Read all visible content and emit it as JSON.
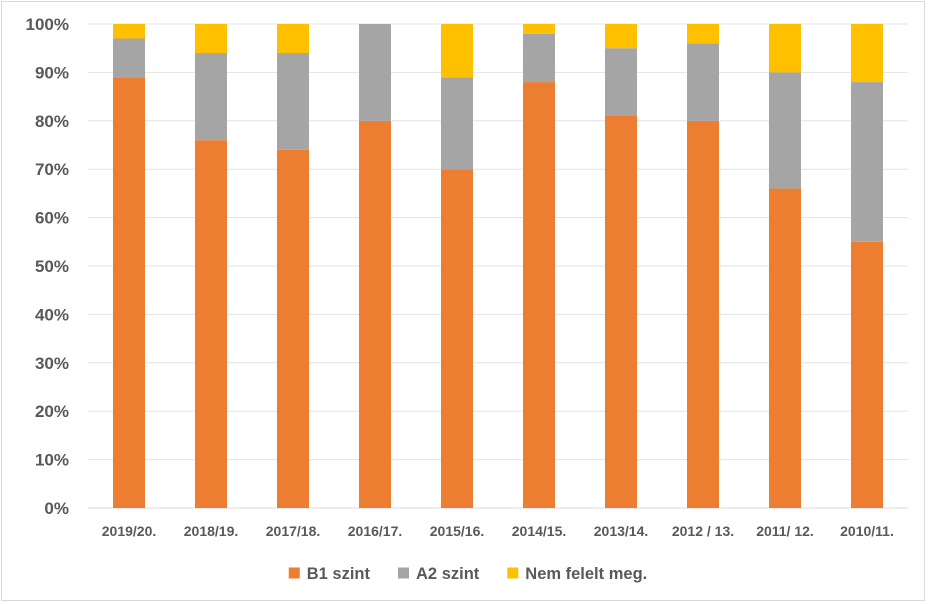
{
  "chart_data": {
    "type": "bar",
    "stacked": true,
    "categories": [
      "2019/20.",
      "2018/19.",
      "2017/18.",
      "2016/17.",
      "2015/16.",
      "2014/15.",
      "2013/14.",
      "2012 / 13.",
      "2011/ 12.",
      "2010/11."
    ],
    "series": [
      {
        "name": "B1 szint",
        "color": "#ED7D31",
        "values": [
          89,
          76,
          74,
          80,
          70,
          88,
          81,
          80,
          66,
          55
        ]
      },
      {
        "name": "A2 szint",
        "color": "#A5A5A5",
        "values": [
          8,
          18,
          20,
          20,
          19,
          10,
          14,
          16,
          24,
          33
        ]
      },
      {
        "name": "Nem felelt meg.",
        "color": "#FFC000",
        "values": [
          3,
          6,
          6,
          0,
          11,
          2,
          5,
          4,
          10,
          12
        ]
      }
    ],
    "ylim": [
      0,
      100
    ],
    "yticks": [
      "0%",
      "10%",
      "20%",
      "30%",
      "40%",
      "50%",
      "60%",
      "70%",
      "80%",
      "90%",
      "100%"
    ],
    "grid": true,
    "legend_position": "bottom",
    "title": "",
    "xlabel": "",
    "ylabel": ""
  }
}
